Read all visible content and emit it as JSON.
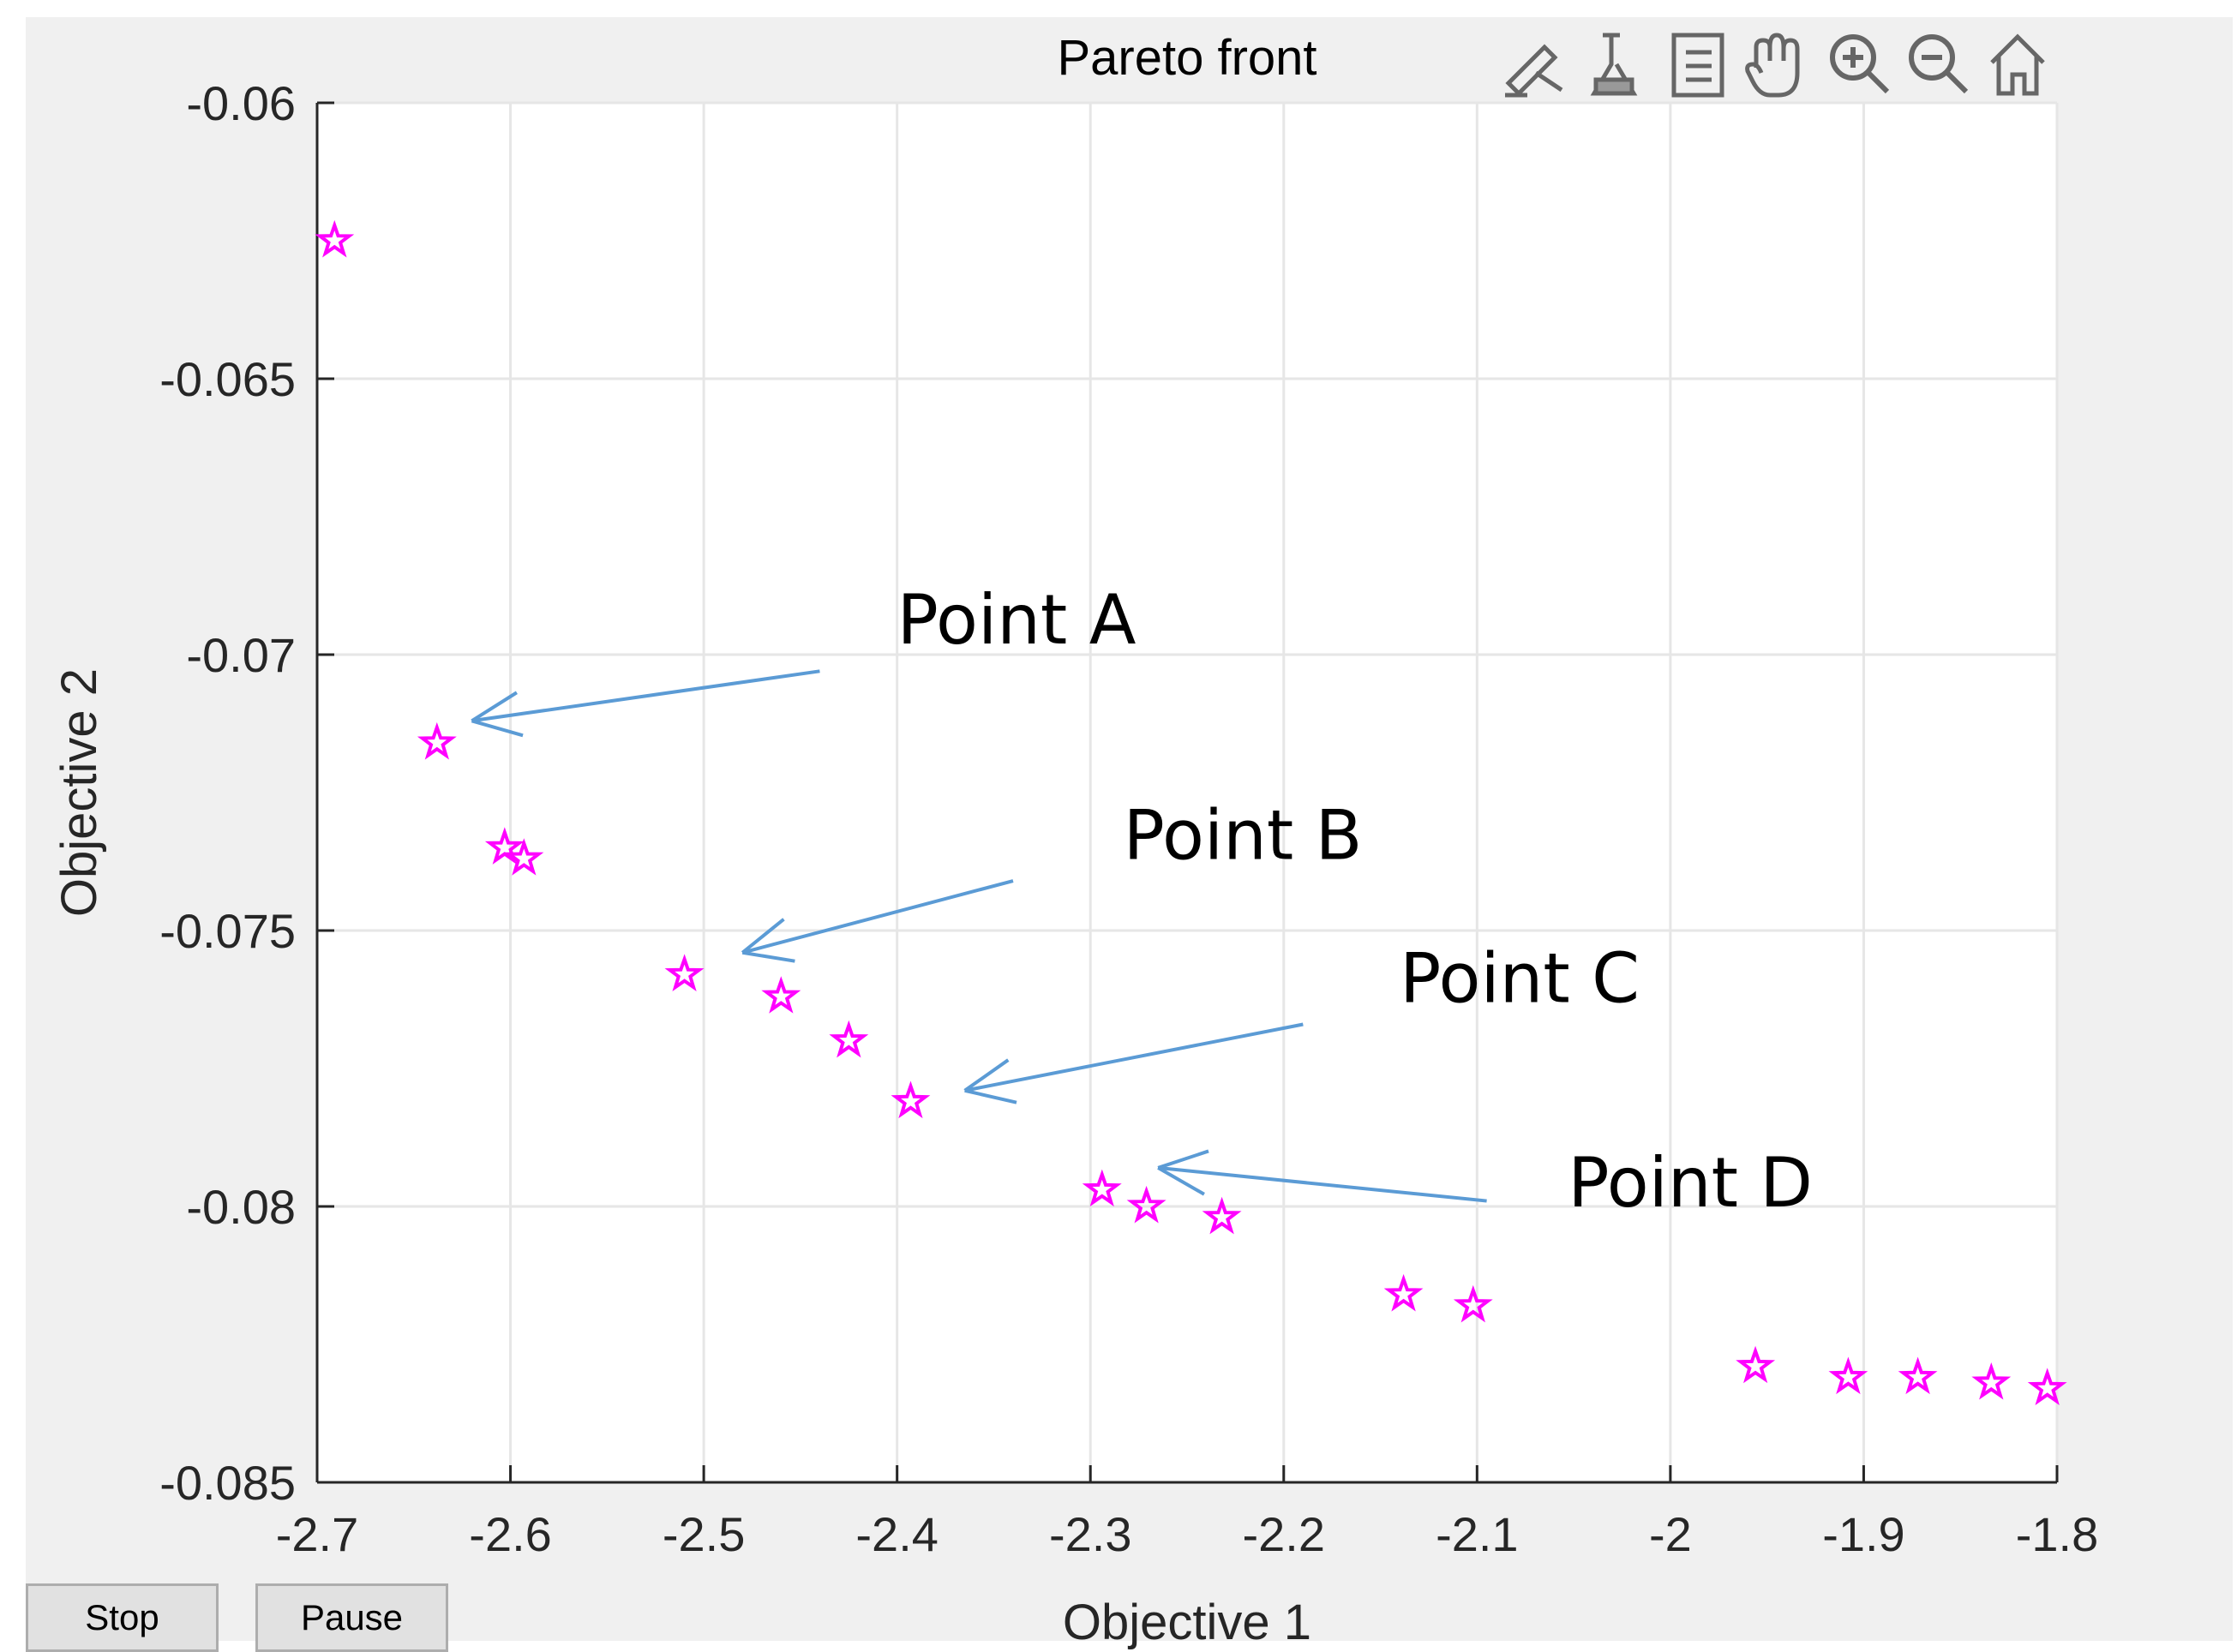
{
  "window": {
    "buttons": {
      "stop_label": "Stop",
      "pause_label": "Pause"
    },
    "toolbar_icons": [
      "brush-icon",
      "data-tip-icon",
      "legend-icon",
      "pan-hand-icon",
      "zoom-in-icon",
      "zoom-out-icon",
      "home-icon"
    ]
  },
  "colors": {
    "marker": "#ff00ff",
    "arrow": "#5b9bd5",
    "grid": "#e6e6e6",
    "axis": "#262626",
    "plot_bg": "#ffffff",
    "figure_bg": "#f0f0f0"
  },
  "chart_data": {
    "type": "scatter",
    "title": "Pareto front",
    "xlabel": "Objective 1",
    "ylabel": "Objective 2",
    "xlim": [
      -2.7,
      -1.8
    ],
    "ylim": [
      -0.085,
      -0.06
    ],
    "grid": true,
    "marker": "pentagram",
    "xticks": [
      -2.7,
      -2.6,
      -2.5,
      -2.4,
      -2.3,
      -2.2,
      -2.1,
      -2.0,
      -1.9,
      -1.8
    ],
    "xtick_labels": [
      "-2.7",
      "-2.6",
      "-2.5",
      "-2.4",
      "-2.3",
      "-2.2",
      "-2.1",
      "-2",
      "-1.9",
      "-1.8"
    ],
    "yticks": [
      -0.06,
      -0.065,
      -0.07,
      -0.075,
      -0.08,
      -0.085
    ],
    "ytick_labels": [
      "-0.06",
      "-0.065",
      "-0.07",
      "-0.075",
      "-0.08",
      "-0.085"
    ],
    "series": [
      {
        "name": "Pareto front",
        "x": [
          -2.691,
          -2.638,
          -2.603,
          -2.593,
          -2.51,
          -2.46,
          -2.425,
          -2.393,
          -2.294,
          -2.271,
          -2.232,
          -2.138,
          -2.102,
          -1.956,
          -1.908,
          -1.872,
          -1.834,
          -1.805
        ],
        "y": [
          -0.0625,
          -0.0716,
          -0.0735,
          -0.0737,
          -0.0758,
          -0.0762,
          -0.077,
          -0.0781,
          -0.0797,
          -0.08,
          -0.0802,
          -0.0816,
          -0.0818,
          -0.0829,
          -0.0831,
          -0.0831,
          -0.0832,
          -0.0833
        ]
      }
    ],
    "annotations": [
      {
        "label": "Point A",
        "text_x": -2.4,
        "text_y": -0.0698,
        "arrow_from": [
          -2.44,
          -0.0703
        ],
        "arrow_to": [
          -2.62,
          -0.0712
        ]
      },
      {
        "label": "Point B",
        "text_x": -2.283,
        "text_y": -0.0737,
        "arrow_from": [
          -2.34,
          -0.0741
        ],
        "arrow_to": [
          -2.48,
          -0.0754
        ]
      },
      {
        "label": "Point C",
        "text_x": -2.14,
        "text_y": -0.0763,
        "arrow_from": [
          -2.19,
          -0.0767
        ],
        "arrow_to": [
          -2.365,
          -0.0779
        ]
      },
      {
        "label": "Point D",
        "text_x": -2.053,
        "text_y": -0.08,
        "arrow_from": [
          -2.095,
          -0.0799
        ],
        "arrow_to": [
          -2.265,
          -0.0793
        ]
      }
    ]
  }
}
